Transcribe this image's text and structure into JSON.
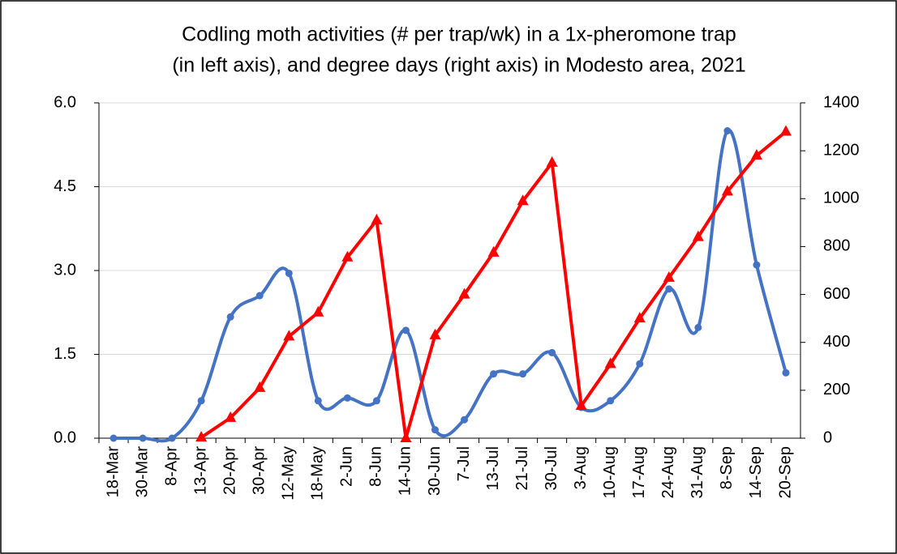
{
  "chart_data": {
    "type": "line",
    "title": [
      "Codling moth activities (# per trap/wk) in a 1x-pheromone trap",
      "(in left axis), and degree days (right axis) in Modesto area, 2021"
    ],
    "categories": [
      "18-Mar",
      "30-Mar",
      "8-Apr",
      "13-Apr",
      "20-Apr",
      "30-Apr",
      "12-May",
      "18-May",
      "2-Jun",
      "8-Jun",
      "14-Jun",
      "30-Jun",
      "7-Jul",
      "13-Jul",
      "21-Jul",
      "30-Jul",
      "3-Aug",
      "10-Aug",
      "17-Aug",
      "24-Aug",
      "31-Aug",
      "8-Sep",
      "14-Sep",
      "20-Sep"
    ],
    "series": [
      {
        "color": "#4472c4",
        "smooth": true,
        "marker": "circle",
        "values": [
          0,
          0,
          0,
          0.67,
          2.17,
          2.55,
          2.95,
          0.67,
          0.72,
          0.67,
          1.93,
          0.15,
          0.33,
          1.15,
          1.15,
          1.53,
          0.55,
          0.67,
          1.33,
          2.67,
          1.98,
          5.5,
          3.1,
          1.17
        ]
      },
      {
        "color": "#ff0000",
        "axis": "y2",
        "smooth": false,
        "marker": "triangle",
        "values": [
          null,
          null,
          null,
          3,
          85,
          210,
          425,
          525,
          755,
          910,
          0,
          430,
          600,
          775,
          990,
          1150,
          135,
          310,
          500,
          670,
          840,
          1030,
          1180,
          1280
        ]
      }
    ],
    "ylim": [
      0,
      6
    ],
    "yticks": [
      {
        "value": 0,
        "label": "0.0"
      },
      {
        "value": 1.5,
        "label": "1.5"
      },
      {
        "value": 3,
        "label": "3.0"
      },
      {
        "value": 4.5,
        "label": "4.5"
      },
      {
        "value": 6,
        "label": "6.0"
      }
    ],
    "y2lim": [
      0,
      1400
    ],
    "y2ticks": [
      0,
      200,
      400,
      600,
      800,
      1000,
      1200,
      1400
    ],
    "grid": true
  }
}
